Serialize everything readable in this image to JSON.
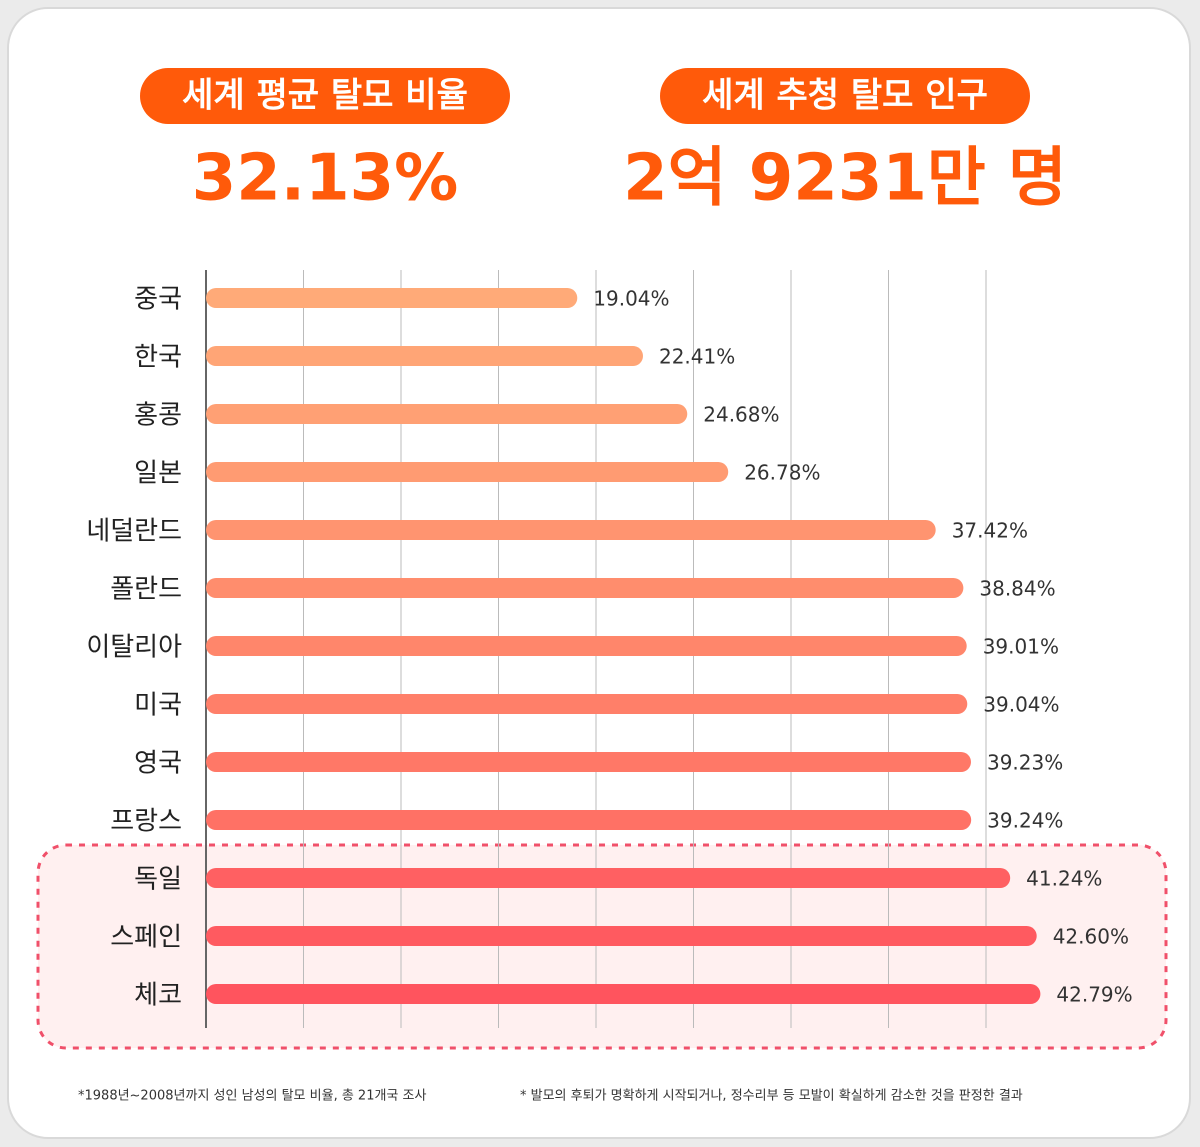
{
  "header": {
    "stats": [
      {
        "label": "세계 평균 탈모 비율",
        "value": "32.13%"
      },
      {
        "label": "세계 추청 탈모 인구",
        "value": "2억 9231만 명"
      }
    ]
  },
  "chart_data": {
    "type": "hbar",
    "categories": [
      "중국",
      "한국",
      "홍콩",
      "일본",
      "네덜란드",
      "폴란드",
      "이탈리아",
      "미국",
      "영국",
      "프랑스",
      "독일",
      "스페인",
      "체코"
    ],
    "values": [
      19.04,
      22.41,
      24.68,
      26.78,
      37.42,
      38.84,
      39.01,
      39.04,
      39.23,
      39.24,
      41.24,
      42.6,
      42.79
    ],
    "value_labels": [
      "19.04%",
      "22.41%",
      "24.68%",
      "26.78%",
      "37.42%",
      "38.84%",
      "39.01%",
      "39.04%",
      "39.23%",
      "39.24%",
      "41.24%",
      "42.60%",
      "42.79%"
    ],
    "colors": [
      "#ffaa78",
      "#ffa576",
      "#ffa074",
      "#ff9b72",
      "#ff9470",
      "#ff8d6d",
      "#ff866b",
      "#ff7f69",
      "#ff7867",
      "#ff7165",
      "#ff6062",
      "#ff5a60",
      "#ff545e"
    ],
    "xlim": [
      0,
      45
    ],
    "xticks": [
      0,
      5,
      10,
      15,
      20,
      25,
      30,
      35,
      40
    ],
    "grid": true,
    "footnotes": [
      "*1988년~2008년까지 성인 남성의 탈모 비율, 총 21개국 조사",
      "* 발모의 후퇴가 명확하게 시작되거나, 정수리부 등 모발이 확실하게 감소한 것을 판정한 결과"
    ]
  }
}
